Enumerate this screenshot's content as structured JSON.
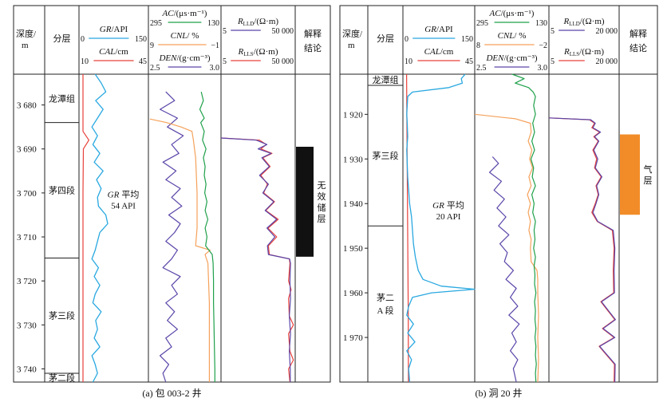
{
  "chart_data": [
    {
      "type": "line",
      "well_caption": "(a) 包 003-2 井",
      "headers": {
        "depth": [
          "深度/",
          "m"
        ],
        "formation": "分层",
        "track1": [
          {
            "name_it": "GR",
            "unit": "/API",
            "min": "0",
            "max": "150",
            "color": "#29a8e0"
          },
          {
            "name_it": "CAL",
            "unit": "/cm",
            "min": "10",
            "max": "45",
            "color": "#e8403a"
          }
        ],
        "track2": [
          {
            "name_it": "AC",
            "unit": "/(μs·m⁻¹)",
            "min": "295",
            "max": "130",
            "color": "#1fa04a"
          },
          {
            "name_it": "CNL",
            "unit": "/ %",
            "min": "9",
            "max": "−1",
            "color": "#f5a15a"
          },
          {
            "name_it": "DEN",
            "unit": "/(g·cm⁻³)",
            "min": "2.5",
            "max": "3.0",
            "color": "#5a45a8"
          }
        ],
        "track3": [
          {
            "name_it": "R",
            "sub": "LLD",
            "unit": "/(Ω·m)",
            "min": "5",
            "max": "50 000",
            "color": "#5a45a8"
          },
          {
            "name_it": "R",
            "sub": "LLS",
            "unit": "/(Ω·m)",
            "min": "5",
            "max": "50 000",
            "color": "#e8403a"
          }
        ],
        "interp": [
          "解释",
          "结论"
        ]
      },
      "depth_range": [
        3673,
        3743
      ],
      "depth_ticks": [
        "3 680",
        "3 690",
        "3 700",
        "3 710",
        "3 720",
        "3 730",
        "3 740"
      ],
      "depth_tick_values": [
        3680,
        3690,
        3700,
        3710,
        3720,
        3730,
        3740
      ],
      "formations": [
        {
          "label": "龙潭组",
          "top": 3673,
          "bottom": 3684
        },
        {
          "label": "茅四段",
          "top": 3684,
          "bottom": 3714.8
        },
        {
          "label": "茅三段",
          "top": 3714.8,
          "bottom": 3741
        },
        {
          "label": "茅二段",
          "top": 3741,
          "bottom": 3743
        }
      ],
      "gr_annotation": [
        "GR",
        "平均",
        "54 API"
      ],
      "interpretation": {
        "label": "无效储层",
        "chars": [
          "无",
          "效",
          "储",
          "层"
        ],
        "top": 3689.5,
        "bottom": 3714.5,
        "color": "#111111"
      },
      "series": {
        "GR": {
          "depth": [
            3673,
            3675,
            3677,
            3679,
            3681,
            3683,
            3685,
            3687,
            3689,
            3691,
            3693,
            3695,
            3697,
            3699,
            3701,
            3703,
            3705,
            3707,
            3709,
            3711,
            3713,
            3715,
            3717,
            3719,
            3721,
            3723,
            3725,
            3727,
            3729,
            3731,
            3733,
            3735,
            3737,
            3739,
            3741,
            3743
          ],
          "value": [
            35,
            48,
            58,
            36,
            52,
            40,
            28,
            40,
            30,
            45,
            33,
            52,
            38,
            48,
            40,
            42,
            58,
            62,
            45,
            40,
            35,
            28,
            42,
            33,
            45,
            35,
            30,
            48,
            36,
            40,
            33,
            45,
            28,
            35,
            40,
            30
          ]
        },
        "CAL": {
          "depth": [
            3673,
            3686,
            3688,
            3690,
            3700,
            3715,
            3730,
            3743
          ],
          "value": [
            12,
            12,
            15,
            12.2,
            12,
            12,
            12,
            12
          ]
        },
        "AC": {
          "depth": [
            3677,
            3679,
            3681,
            3683,
            3684,
            3686,
            3688,
            3690,
            3692,
            3694,
            3696,
            3698,
            3700,
            3702,
            3704,
            3706,
            3708,
            3710,
            3712,
            3714,
            3716,
            3720,
            3725,
            3730,
            3735,
            3740,
            3743
          ],
          "value": [
            175,
            170,
            178,
            168,
            176,
            168,
            172,
            164,
            170,
            166,
            168,
            164,
            167,
            162,
            166,
            160,
            166,
            162,
            165,
            150,
            148,
            147,
            147,
            146,
            145,
            144,
            144
          ]
        },
        "CNL": {
          "depth": [
            3683.2,
            3684,
            3685,
            3686,
            3688,
            3692,
            3700,
            3708,
            3712,
            3713,
            3714,
            3716,
            3725,
            3735,
            3743
          ],
          "value": [
            8.8,
            6.5,
            4.5,
            3.0,
            2.8,
            2.5,
            2.3,
            2.3,
            2.5,
            0.5,
            1.2,
            0.8,
            0.6,
            0.6,
            0.6
          ]
        },
        "DEN": {
          "depth": [
            3677,
            3679,
            3681,
            3683,
            3685,
            3687,
            3689,
            3691,
            3693,
            3695,
            3697,
            3699,
            3701,
            3703,
            3705,
            3707,
            3709,
            3711,
            3713,
            3715,
            3717,
            3719,
            3721,
            3723,
            3725,
            3727,
            3729,
            3731,
            3733,
            3735,
            3737,
            3739,
            3741,
            3743
          ],
          "value": [
            2.62,
            2.68,
            2.58,
            2.7,
            2.63,
            2.74,
            2.66,
            2.71,
            2.6,
            2.69,
            2.62,
            2.72,
            2.66,
            2.73,
            2.64,
            2.72,
            2.68,
            2.62,
            2.7,
            2.66,
            2.6,
            2.72,
            2.66,
            2.7,
            2.62,
            2.68,
            2.63,
            2.7,
            2.62,
            2.66,
            2.58,
            2.64,
            2.6,
            2.62
          ]
        },
        "RLLD": {
          "depth": [
            3687.5,
            3688,
            3689,
            3690,
            3691,
            3692,
            3694,
            3696,
            3698,
            3700,
            3702,
            3704,
            3706,
            3708,
            3710,
            3712,
            3714,
            3715,
            3716,
            3720,
            3724,
            3728,
            3732,
            3736,
            3740,
            3743
          ],
          "value": [
            5,
            400,
            1500,
            500,
            2500,
            800,
            2000,
            600,
            1800,
            900,
            3500,
            1200,
            5000,
            1500,
            4000,
            1600,
            1800,
            25000,
            28000,
            26000,
            28000,
            24000,
            28000,
            24000,
            27000,
            27000
          ]
        },
        "RLLS": {
          "depth": [
            3687.5,
            3688,
            3689,
            3690,
            3691,
            3692,
            3694,
            3696,
            3698,
            3700,
            3702,
            3704,
            3706,
            3708,
            3710,
            3712,
            3714,
            3715,
            3716,
            3720,
            3722,
            3724,
            3728,
            3730,
            3732,
            3736,
            3738,
            3740,
            3743
          ],
          "value": [
            5,
            600,
            1400,
            700,
            2800,
            900,
            2200,
            700,
            1600,
            1000,
            3800,
            1300,
            6000,
            1700,
            5000,
            1800,
            2000,
            24000,
            26000,
            22000,
            30000,
            22000,
            24000,
            40000,
            22000,
            26000,
            40000,
            22000,
            26000
          ]
        }
      }
    },
    {
      "type": "line",
      "well_caption": "(b) 洞 20 井",
      "headers": {
        "depth": [
          "深度/",
          "m"
        ],
        "formation": "分层",
        "track1": [
          {
            "name_it": "GR",
            "unit": "/API",
            "min": "0",
            "max": "150",
            "color": "#29a8e0"
          },
          {
            "name_it": "CAL",
            "unit": "/cm",
            "min": "10",
            "max": "45",
            "color": "#e8403a"
          }
        ],
        "track2": [
          {
            "name_it": "AC",
            "unit": "/(μs·m⁻¹)",
            "min": "295",
            "max": "130",
            "color": "#1fa04a"
          },
          {
            "name_it": "CNL",
            "unit": "/ %",
            "min": "8",
            "max": "−2",
            "color": "#f5a15a"
          },
          {
            "name_it": "DEN",
            "unit": "/(g·cm⁻³)",
            "min": "2.5",
            "max": "3.0",
            "color": "#5a45a8"
          }
        ],
        "track3": [
          {
            "name_it": "R",
            "sub": "LLD",
            "unit": "/(Ω·m)",
            "min": "5",
            "max": "20 000",
            "color": "#5a45a8"
          },
          {
            "name_it": "R",
            "sub": "LLS",
            "unit": "/(Ω·m)",
            "min": "5",
            "max": "20 000",
            "color": "#e8403a"
          }
        ],
        "interp": [
          "解释",
          "结论"
        ]
      },
      "depth_range": [
        1911,
        1980
      ],
      "depth_ticks": [
        "1 920",
        "1 930",
        "1 940",
        "1 950",
        "1 960",
        "1 970"
      ],
      "depth_tick_values": [
        1920,
        1930,
        1940,
        1950,
        1960,
        1970
      ],
      "formations": [
        {
          "label": "龙潭组",
          "top": 1911,
          "bottom": 1913.5
        },
        {
          "label": "茅三段",
          "top": 1913.5,
          "bottom": 1945
        },
        {
          "label": "茅二A段",
          "lines": [
            "茅二",
            "A 段"
          ],
          "top": 1945,
          "bottom": 1980
        }
      ],
      "gr_annotation": [
        "GR",
        "平均",
        "20 API"
      ],
      "interpretation": {
        "label": "气层",
        "chars": [
          "气",
          "层"
        ],
        "top": 1924.5,
        "bottom": 1942.5,
        "color": "#f28c28"
      },
      "series": {
        "GR": {
          "depth": [
            1911,
            1912,
            1913,
            1914,
            1915,
            1916,
            1918,
            1920,
            1922,
            1925,
            1928,
            1931,
            1934,
            1937,
            1940,
            1943,
            1946,
            1949,
            1952,
            1955,
            1957,
            1958.5,
            1959.2,
            1960,
            1961,
            1963,
            1965,
            1967,
            1969,
            1971,
            1973,
            1975,
            1977,
            1980
          ],
          "value": [
            130,
            122,
            124,
            96,
            20,
            10,
            9,
            8,
            9,
            10,
            8,
            9,
            10,
            12,
            14,
            18,
            20,
            22,
            26,
            32,
            42,
            80,
            150,
            60,
            20,
            12,
            8,
            22,
            10,
            25,
            8,
            18,
            12,
            14
          ]
        },
        "CAL": {
          "depth": [
            1911,
            1925,
            1945,
            1965,
            1980
          ],
          "value": [
            11.8,
            12,
            12.3,
            12.6,
            12.7
          ]
        },
        "AC": {
          "depth": [
            1911,
            1912,
            1913,
            1914,
            1915,
            1916,
            1918,
            1920,
            1922,
            1924,
            1926,
            1928,
            1930,
            1932,
            1934,
            1936,
            1938,
            1940,
            1942,
            1944,
            1946,
            1948,
            1950,
            1952,
            1954,
            1956,
            1958,
            1960,
            1962,
            1964,
            1966,
            1968,
            1970,
            1972,
            1974,
            1976,
            1978,
            1980
          ],
          "value": [
            212,
            185,
            205,
            175,
            165,
            160,
            164,
            160,
            166,
            162,
            168,
            162,
            170,
            164,
            167,
            160,
            168,
            163,
            166,
            160,
            163,
            161,
            164,
            160,
            163,
            161,
            162,
            159,
            162,
            160,
            161,
            159,
            161,
            159,
            160,
            158,
            160,
            159
          ]
        },
        "CNL": {
          "depth": [
            1920,
            1921,
            1922,
            1924,
            1926,
            1928,
            1930,
            1932,
            1934,
            1936,
            1938,
            1940,
            1942,
            1944,
            1946,
            1948,
            1950,
            1953,
            1955,
            1957,
            1960,
            1965,
            1970,
            1975,
            1980
          ],
          "value": [
            8,
            2.5,
            0.5,
            0.4,
            0.8,
            0.3,
            0.6,
            0.2,
            0.7,
            0.4,
            0.9,
            0.5,
            0.8,
            0.5,
            0.7,
            0.4,
            0.5,
            0.4,
            -0.4,
            -0.5,
            -0.5,
            -0.6,
            -0.5,
            -0.6,
            -0.5
          ]
        },
        "DEN": {
          "depth": [
            1929.5,
            1931,
            1933,
            1935,
            1937,
            1939,
            1941,
            1943,
            1945,
            1947,
            1949,
            1951,
            1953,
            1955,
            1957,
            1959,
            1961,
            1963,
            1965,
            1967,
            1969,
            1971,
            1973,
            1975,
            1977,
            1980
          ],
          "value": [
            2.62,
            2.66,
            2.6,
            2.68,
            2.63,
            2.7,
            2.65,
            2.71,
            2.66,
            2.73,
            2.67,
            2.72,
            2.7,
            2.76,
            2.71,
            2.78,
            2.74,
            2.79,
            2.73,
            2.8,
            2.75,
            2.78,
            2.74,
            2.79,
            2.76,
            2.78
          ]
        },
        "RLLD": {
          "depth": [
            1920.8,
            1921.2,
            1922,
            1923,
            1924,
            1925,
            1926,
            1928,
            1930,
            1932,
            1934,
            1936,
            1938,
            1940,
            1942,
            1944,
            1946,
            1950,
            1955,
            1960,
            1962,
            1966,
            1968,
            1970,
            1972,
            1976,
            1980
          ],
          "value": [
            5,
            700,
            1200,
            900,
            2200,
            1100,
            1800,
            1000,
            1600,
            1200,
            2600,
            1400,
            1800,
            1300,
            900,
            1600,
            10000,
            12000,
            11000,
            11500,
            2500,
            13000,
            3000,
            12000,
            2000,
            12500,
            12000
          ]
        },
        "RLLS": {
          "depth": [
            1920.8,
            1921.2,
            1922,
            1923,
            1924,
            1925,
            1926,
            1928,
            1930,
            1932,
            1934,
            1936,
            1938,
            1940,
            1942,
            1944,
            1946,
            1950,
            1955,
            1960,
            1962,
            1966,
            1968,
            1970,
            1972,
            1976,
            1980
          ],
          "value": [
            5,
            600,
            1100,
            800,
            2000,
            1000,
            1700,
            900,
            1400,
            1100,
            2400,
            1300,
            1700,
            1200,
            800,
            1500,
            9000,
            11000,
            10000,
            10500,
            2300,
            12000,
            2800,
            11000,
            1900,
            11500,
            11000
          ]
        }
      }
    }
  ]
}
